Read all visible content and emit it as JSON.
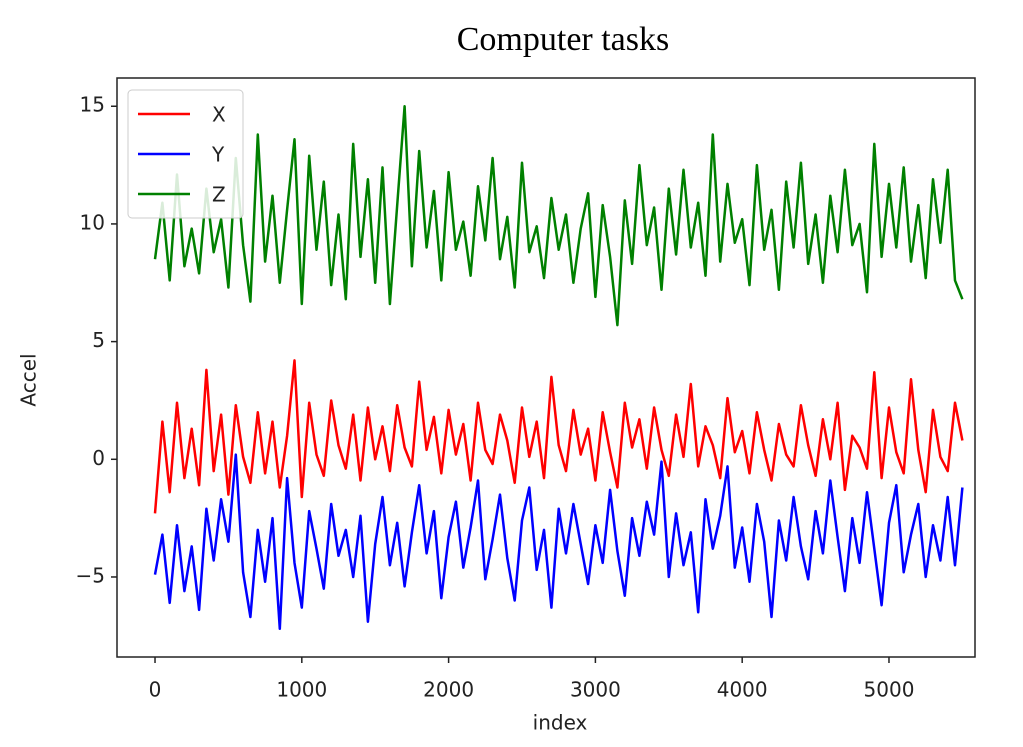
{
  "chart_data": {
    "type": "line",
    "title": "Computer tasks",
    "x_label": "index",
    "y_label": "Accel",
    "x": [
      0,
      50,
      100,
      150,
      200,
      250,
      300,
      350,
      400,
      450,
      500,
      550,
      600,
      650,
      700,
      750,
      800,
      850,
      900,
      950,
      1000,
      1050,
      1100,
      1150,
      1200,
      1250,
      1300,
      1350,
      1400,
      1450,
      1500,
      1550,
      1600,
      1650,
      1700,
      1750,
      1800,
      1850,
      1900,
      1950,
      2000,
      2050,
      2100,
      2150,
      2200,
      2250,
      2300,
      2350,
      2400,
      2450,
      2500,
      2550,
      2600,
      2650,
      2700,
      2750,
      2800,
      2850,
      2900,
      2950,
      3000,
      3050,
      3100,
      3150,
      3200,
      3250,
      3300,
      3350,
      3400,
      3450,
      3500,
      3550,
      3600,
      3650,
      3700,
      3750,
      3800,
      3850,
      3900,
      3950,
      4000,
      4050,
      4100,
      4150,
      4200,
      4250,
      4300,
      4350,
      4400,
      4450,
      4500,
      4550,
      4600,
      4650,
      4700,
      4750,
      4800,
      4850,
      4900,
      4950,
      5000,
      5050,
      5100,
      5150,
      5200,
      5250,
      5300,
      5350,
      5400,
      5450,
      5500
    ],
    "series": [
      {
        "name": "X",
        "color": "#ff0000",
        "values": [
          -2.3,
          1.6,
          -1.4,
          2.4,
          -0.8,
          1.3,
          -1.1,
          3.8,
          -0.5,
          1.9,
          -1.5,
          2.3,
          0.1,
          -1.0,
          2.0,
          -0.6,
          1.6,
          -1.2,
          1.0,
          4.2,
          -1.6,
          2.4,
          0.2,
          -0.7,
          2.5,
          0.6,
          -0.4,
          1.9,
          -0.9,
          2.2,
          0.0,
          1.4,
          -0.5,
          2.3,
          0.5,
          -0.3,
          3.3,
          0.4,
          1.8,
          -0.6,
          2.1,
          0.2,
          1.5,
          -0.9,
          2.4,
          0.4,
          -0.2,
          1.9,
          0.8,
          -1.0,
          2.2,
          0.1,
          1.6,
          -0.8,
          3.5,
          0.6,
          -0.5,
          2.1,
          0.2,
          1.3,
          -0.9,
          2.0,
          0.3,
          -1.2,
          2.4,
          0.5,
          1.7,
          -0.4,
          2.2,
          0.4,
          -0.7,
          1.9,
          0.1,
          3.2,
          -0.3,
          1.4,
          0.6,
          -0.8,
          2.6,
          0.3,
          1.2,
          -0.6,
          2.0,
          0.4,
          -0.9,
          1.5,
          0.2,
          -0.3,
          2.3,
          0.6,
          -0.7,
          1.7,
          0.0,
          2.4,
          -1.3,
          1.0,
          0.5,
          -0.4,
          3.7,
          -0.8,
          2.2,
          0.3,
          -0.6,
          3.4,
          0.4,
          -1.4,
          2.1,
          0.1,
          -0.5,
          2.4,
          0.8
        ]
      },
      {
        "name": "Y",
        "color": "#0000ff",
        "values": [
          -4.9,
          -3.2,
          -6.1,
          -2.8,
          -5.6,
          -3.7,
          -6.4,
          -2.1,
          -4.3,
          -1.7,
          -3.5,
          0.2,
          -4.8,
          -6.7,
          -3.0,
          -5.2,
          -2.5,
          -7.2,
          -0.8,
          -4.4,
          -6.3,
          -2.2,
          -3.8,
          -5.5,
          -1.9,
          -4.1,
          -3.0,
          -5.0,
          -2.4,
          -6.9,
          -3.6,
          -1.6,
          -4.5,
          -2.7,
          -5.4,
          -3.1,
          -1.1,
          -4.0,
          -2.2,
          -5.9,
          -3.3,
          -1.8,
          -4.6,
          -2.9,
          -0.9,
          -5.1,
          -3.4,
          -1.5,
          -4.2,
          -6.0,
          -2.6,
          -1.2,
          -4.7,
          -3.0,
          -6.3,
          -2.1,
          -4.0,
          -1.9,
          -3.6,
          -5.3,
          -2.8,
          -4.4,
          -1.3,
          -3.9,
          -5.8,
          -2.5,
          -4.1,
          -1.8,
          -3.2,
          -0.1,
          -5.0,
          -2.3,
          -4.5,
          -3.1,
          -6.5,
          -1.7,
          -3.8,
          -2.4,
          -0.3,
          -4.6,
          -2.9,
          -5.2,
          -1.9,
          -3.5,
          -6.7,
          -2.6,
          -4.3,
          -1.6,
          -3.7,
          -5.1,
          -2.2,
          -4.0,
          -0.9,
          -3.3,
          -5.6,
          -2.5,
          -4.4,
          -1.4,
          -3.8,
          -6.2,
          -2.7,
          -1.1,
          -4.8,
          -3.2,
          -1.9,
          -5.0,
          -2.8,
          -4.3,
          -1.6,
          -4.5,
          -1.2
        ]
      },
      {
        "name": "Z",
        "color": "#008000",
        "values": [
          8.5,
          10.9,
          7.6,
          12.1,
          8.2,
          9.8,
          7.9,
          11.5,
          8.8,
          10.2,
          7.3,
          12.8,
          9.1,
          6.7,
          13.8,
          8.4,
          11.2,
          7.5,
          10.6,
          13.6,
          6.6,
          12.9,
          8.9,
          11.8,
          7.4,
          10.4,
          6.8,
          13.4,
          8.6,
          11.9,
          7.5,
          12.4,
          6.6,
          10.8,
          15.0,
          8.2,
          13.1,
          9.0,
          11.4,
          7.6,
          12.2,
          8.9,
          10.1,
          7.8,
          11.6,
          9.3,
          12.8,
          8.5,
          10.3,
          7.3,
          12.6,
          8.8,
          9.9,
          7.7,
          11.1,
          8.9,
          10.4,
          7.5,
          9.8,
          11.3,
          6.9,
          10.8,
          8.6,
          5.7,
          11.0,
          8.3,
          12.5,
          9.1,
          10.7,
          7.2,
          11.5,
          8.7,
          12.3,
          9.0,
          10.9,
          7.8,
          13.8,
          8.4,
          11.7,
          9.2,
          10.2,
          7.4,
          12.5,
          8.9,
          10.6,
          7.2,
          11.8,
          9.0,
          12.6,
          8.3,
          10.4,
          7.5,
          11.2,
          8.8,
          12.3,
          9.1,
          10.0,
          7.1,
          13.4,
          8.6,
          11.7,
          9.0,
          12.4,
          8.4,
          10.8,
          7.7,
          11.9,
          9.2,
          12.3,
          7.6,
          6.8
        ]
      }
    ],
    "xlim": [
      -259,
      5586
    ],
    "ylim": [
      -8.4,
      16.2
    ],
    "xticks": [
      0,
      1000,
      2000,
      3000,
      4000,
      5000
    ],
    "yticks": [
      {
        "value": -5,
        "label": "−5"
      },
      0,
      5,
      10,
      15
    ],
    "legend": "upper left"
  }
}
